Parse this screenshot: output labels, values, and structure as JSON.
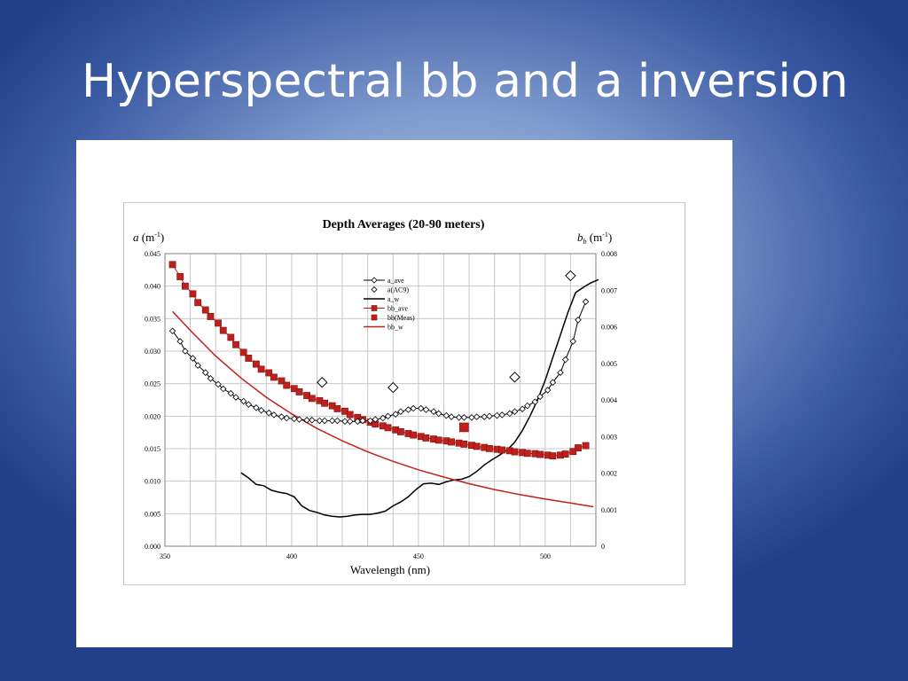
{
  "slide": {
    "title": "Hyperspectral bb and a inversion"
  },
  "chart_data": {
    "type": "line",
    "title": "Depth Averages (20-90 meters)",
    "xlabel": "Wavelength (nm)",
    "ylabel_left": "a (m-1)",
    "ylabel_right": "bb (m-1)",
    "xlim": [
      350,
      520
    ],
    "ylim_left": [
      0,
      0.045
    ],
    "ylim_right": [
      0,
      0.008
    ],
    "x_ticks": [
      "350",
      "400",
      "450",
      "500"
    ],
    "y_ticks_left": [
      "0.000",
      "0.005",
      "0.010",
      "0.015",
      "0.020",
      "0.025",
      "0.030",
      "0.035",
      "0.040",
      "0.045"
    ],
    "y_ticks_right": [
      "0",
      "0.001",
      "0.002",
      "0.003",
      "0.004",
      "0.005",
      "0.006",
      "0.007",
      "0.008"
    ],
    "grid": true,
    "legend_position": "top-center",
    "legend": [
      "a_ave",
      "a(AC9)",
      "a_w",
      "bb_ave",
      "bb(Meas)",
      "bb_w"
    ],
    "series": [
      {
        "name": "a_ave",
        "axis": "left",
        "marker": "open-diamond",
        "color": "#000000",
        "x": [
          353,
          356,
          358,
          361,
          363,
          366,
          368,
          371,
          373,
          376,
          378,
          381,
          383,
          386,
          388,
          391,
          393,
          396,
          398,
          401,
          403,
          406,
          408,
          411,
          413,
          416,
          418,
          421,
          423,
          426,
          428,
          431,
          433,
          436,
          438,
          441,
          443,
          446,
          448,
          451,
          453,
          456,
          458,
          461,
          463,
          466,
          468,
          471,
          473,
          476,
          478,
          481,
          483,
          486,
          488,
          491,
          493,
          496,
          498,
          501,
          503,
          506,
          508,
          511,
          513,
          516
        ],
        "y": [
          0.0331,
          0.0315,
          0.03,
          0.0289,
          0.0278,
          0.0267,
          0.0258,
          0.0249,
          0.0242,
          0.0235,
          0.0229,
          0.0223,
          0.0218,
          0.0213,
          0.0209,
          0.0205,
          0.0202,
          0.0199,
          0.0197,
          0.0196,
          0.0195,
          0.0194,
          0.0194,
          0.0193,
          0.0193,
          0.0193,
          0.0193,
          0.0192,
          0.0192,
          0.0192,
          0.0193,
          0.0193,
          0.0195,
          0.0197,
          0.02,
          0.0203,
          0.0207,
          0.021,
          0.0212,
          0.0212,
          0.021,
          0.0207,
          0.0204,
          0.0201,
          0.0199,
          0.0198,
          0.0198,
          0.0198,
          0.0199,
          0.0199,
          0.02,
          0.0201,
          0.0202,
          0.0204,
          0.0207,
          0.0211,
          0.0216,
          0.0222,
          0.023,
          0.024,
          0.0252,
          0.0267,
          0.0287,
          0.0315,
          0.0348,
          0.0376
        ]
      },
      {
        "name": "a(AC9)",
        "axis": "left",
        "marker": "large-open-diamond",
        "x": [
          412,
          440,
          488,
          510
        ],
        "y": [
          0.0252,
          0.0244,
          0.026,
          0.0416
        ]
      },
      {
        "name": "a_w",
        "axis": "left",
        "marker": "none",
        "color": "#000000",
        "x": [
          380,
          383,
          386,
          389,
          392,
          395,
          398,
          401,
          404,
          407,
          410,
          413,
          416,
          419,
          422,
          425,
          428,
          431,
          434,
          437,
          440,
          443,
          446,
          449,
          452,
          455,
          458,
          461,
          464,
          467,
          470,
          473,
          476,
          479,
          482,
          485,
          488,
          491,
          494,
          497,
          500,
          503,
          506,
          509,
          512,
          515,
          518,
          521
        ],
        "y": [
          0.0113,
          0.0105,
          0.0095,
          0.0093,
          0.0086,
          0.0083,
          0.0081,
          0.0076,
          0.0062,
          0.0055,
          0.0052,
          0.0048,
          0.0046,
          0.0045,
          0.0046,
          0.0048,
          0.0049,
          0.0049,
          0.0051,
          0.0054,
          0.0062,
          0.0068,
          0.0076,
          0.0087,
          0.0096,
          0.0097,
          0.0095,
          0.0099,
          0.0102,
          0.0103,
          0.0107,
          0.0115,
          0.0125,
          0.0133,
          0.014,
          0.0148,
          0.016,
          0.0178,
          0.02,
          0.0225,
          0.0255,
          0.029,
          0.0325,
          0.036,
          0.039,
          0.0398,
          0.0405,
          0.041
        ]
      },
      {
        "name": "bb_ave",
        "axis": "right",
        "marker": "filled-square",
        "color": "#c0201c",
        "x": [
          353,
          356,
          358,
          361,
          363,
          366,
          368,
          371,
          373,
          376,
          378,
          381,
          383,
          386,
          388,
          391,
          393,
          396,
          398,
          401,
          403,
          406,
          408,
          411,
          413,
          416,
          418,
          421,
          423,
          426,
          428,
          431,
          433,
          436,
          438,
          441,
          443,
          446,
          448,
          451,
          453,
          456,
          458,
          461,
          463,
          466,
          468,
          471,
          473,
          476,
          478,
          481,
          483,
          486,
          488,
          491,
          493,
          496,
          498,
          501,
          503,
          506,
          508,
          511,
          513,
          516
        ],
        "y": [
          0.0077,
          0.00737,
          0.00711,
          0.0069,
          0.00666,
          0.00646,
          0.00628,
          0.0061,
          0.0059,
          0.00571,
          0.00551,
          0.0053,
          0.00514,
          0.00498,
          0.00484,
          0.00474,
          0.00462,
          0.00452,
          0.0044,
          0.00431,
          0.00422,
          0.00412,
          0.00404,
          0.00398,
          0.00391,
          0.00384,
          0.00376,
          0.00369,
          0.0036,
          0.00352,
          0.00346,
          0.00339,
          0.00334,
          0.00329,
          0.00324,
          0.00318,
          0.00313,
          0.00308,
          0.00304,
          0.003,
          0.00296,
          0.00293,
          0.0029,
          0.00288,
          0.00285,
          0.00282,
          0.00279,
          0.00276,
          0.00273,
          0.0027,
          0.00267,
          0.00265,
          0.00263,
          0.00261,
          0.00258,
          0.00256,
          0.00254,
          0.00253,
          0.00251,
          0.00249,
          0.00247,
          0.00249,
          0.00252,
          0.00259,
          0.00269,
          0.00275
        ]
      },
      {
        "name": "bb(Meas)",
        "axis": "right",
        "marker": "large-filled-square",
        "x": [
          468
        ],
        "y": [
          0.00325
        ]
      },
      {
        "name": "bb_w",
        "axis": "right",
        "marker": "none",
        "color": "#c0201c",
        "x": [
          353,
          360,
          370,
          380,
          390,
          400,
          410,
          420,
          430,
          440,
          450,
          460,
          470,
          480,
          490,
          500,
          510,
          519
        ],
        "y": [
          0.00642,
          0.0059,
          0.0052,
          0.0046,
          0.00407,
          0.00362,
          0.00322,
          0.00288,
          0.00258,
          0.00232,
          0.00209,
          0.00189,
          0.00171,
          0.00155,
          0.00141,
          0.00129,
          0.00118,
          0.00108
        ]
      }
    ]
  }
}
